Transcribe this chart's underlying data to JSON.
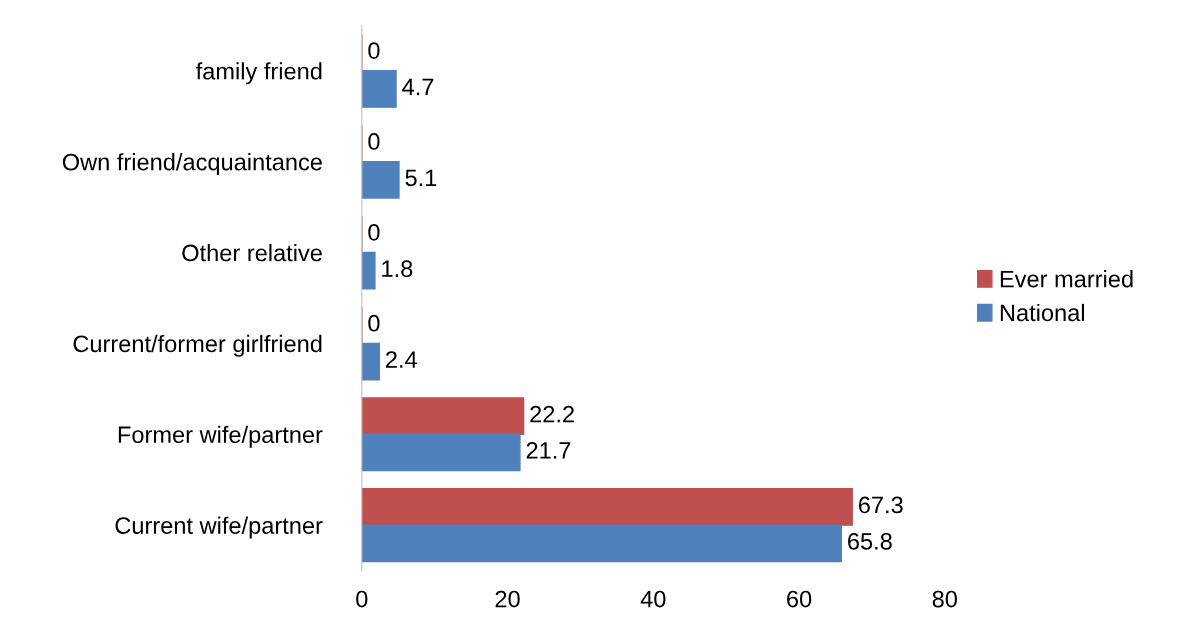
{
  "chart_data": {
    "type": "bar",
    "orientation": "horizontal",
    "categories": [
      "family friend",
      "Own friend/acquaintance",
      "Other relative",
      "Current/former girlfriend",
      "Former wife/partner",
      "Current wife/partner"
    ],
    "series": [
      {
        "name": "Ever married",
        "color": "#c0504d",
        "values": [
          0,
          0,
          0,
          0,
          22.2,
          67.3
        ]
      },
      {
        "name": "National",
        "color": "#4f81bd",
        "values": [
          4.7,
          5.1,
          1.8,
          2.4,
          21.7,
          65.8
        ]
      }
    ],
    "xlim": [
      0,
      80
    ],
    "xticks": [
      0,
      20,
      40,
      60,
      80
    ],
    "data_labels": true,
    "legend": "right",
    "grid": false
  }
}
